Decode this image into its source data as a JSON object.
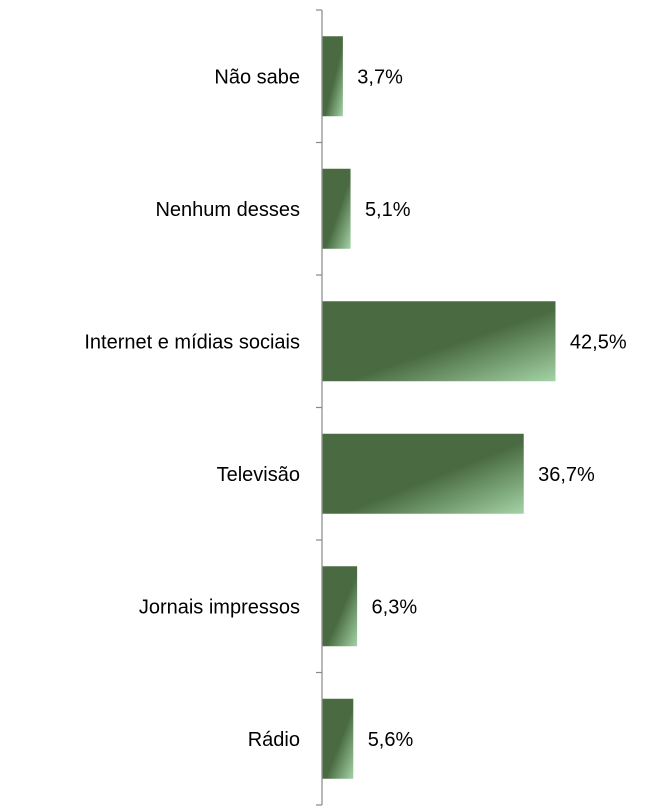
{
  "chart_data": {
    "type": "bar",
    "orientation": "horizontal",
    "categories": [
      "Não sabe",
      "Nenhum desses",
      "Internet e mídias sociais",
      "Televisão",
      "Jornais impressos",
      "Rádio"
    ],
    "values": [
      3.7,
      5.1,
      42.5,
      36.7,
      6.3,
      5.6
    ],
    "value_labels": [
      "3,7%",
      "5,1%",
      "42,5%",
      "36,7%",
      "6,3%",
      "5,6%"
    ],
    "title": "",
    "xlabel": "",
    "ylabel": "",
    "xlim": [
      0,
      55
    ],
    "grid": false,
    "legend": "none",
    "colors": {
      "bar_dark": "#4a6b42",
      "bar_light": "#a3d3a6",
      "axis": "#888888"
    }
  }
}
